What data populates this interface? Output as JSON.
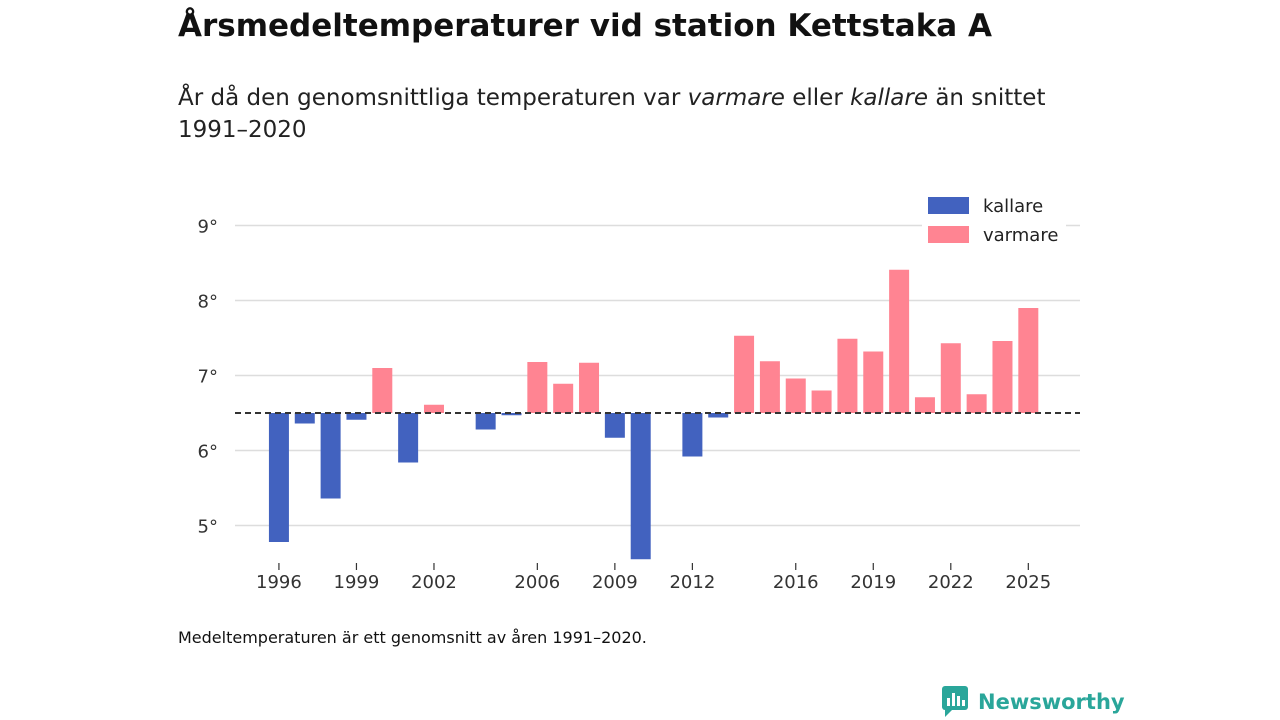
{
  "title": "Årsmedeltemperaturer vid station Kettstaka A",
  "subtitle": {
    "prefix": "År då den genomsnittliga temperaturen var ",
    "warmer_word": "varmare",
    "middle": " eller ",
    "colder_word": "kallare",
    "suffix": " än snittet 1991–2020"
  },
  "footnote": "Medeltemperaturen är ett genomsnitt av åren 1991–2020.",
  "brand": {
    "name": "Newsworthy",
    "icon": "newsworthy-logo-icon",
    "color": "#2aa69a"
  },
  "colors": {
    "colder": "#4262bf",
    "warmer": "#ff8492",
    "baseline": "#333333",
    "grid": "#dddddd"
  },
  "chart_data": {
    "type": "bar",
    "title": "Årsmedeltemperaturer vid station Kettstaka A",
    "xlabel": "",
    "ylabel": "",
    "baseline": 6.5,
    "baseline_style": "dashed",
    "ylim": [
      4.5,
      9.3
    ],
    "xlim": [
      1994.3,
      2027
    ],
    "y_ticks": [
      5,
      6,
      7,
      8,
      9
    ],
    "y_tick_suffix": "°",
    "x_ticks": [
      1996,
      1999,
      2002,
      2006,
      2009,
      2012,
      2016,
      2019,
      2022,
      2025
    ],
    "legend_position": "top-right",
    "series": [
      {
        "name": "kallare",
        "color": "#4262bf"
      },
      {
        "name": "varmare",
        "color": "#ff8492"
      }
    ],
    "x": [
      1996,
      1997,
      1998,
      1999,
      2000,
      2001,
      2002,
      2004,
      2005,
      2006,
      2007,
      2008,
      2009,
      2010,
      2012,
      2013,
      2014,
      2015,
      2016,
      2017,
      2018,
      2019,
      2020,
      2021,
      2022,
      2023,
      2024,
      2025
    ],
    "values": [
      4.78,
      6.36,
      5.36,
      6.41,
      7.1,
      5.84,
      6.61,
      6.28,
      6.47,
      7.18,
      6.89,
      7.17,
      6.17,
      4.55,
      5.92,
      6.44,
      7.53,
      7.19,
      6.96,
      6.8,
      7.49,
      7.32,
      8.41,
      6.71,
      7.43,
      6.75,
      7.46,
      7.9
    ]
  }
}
